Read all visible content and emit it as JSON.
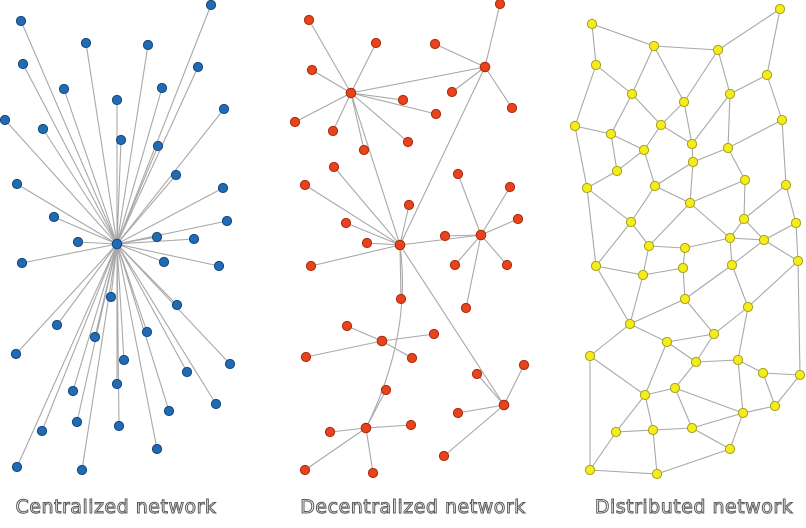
{
  "captions": {
    "centralized": "Centralized network",
    "decentralized": "Decentralized network",
    "distributed": "Distributed network"
  },
  "colors": {
    "centralized_node": "#1f6bb5",
    "centralized_stroke": "#14477a",
    "decentralized_node": "#e8431c",
    "decentralized_stroke": "#a82a0c",
    "distributed_node": "#f4ec1c",
    "distributed_stroke": "#a9a112",
    "edge": "#a8a8a8"
  }
}
